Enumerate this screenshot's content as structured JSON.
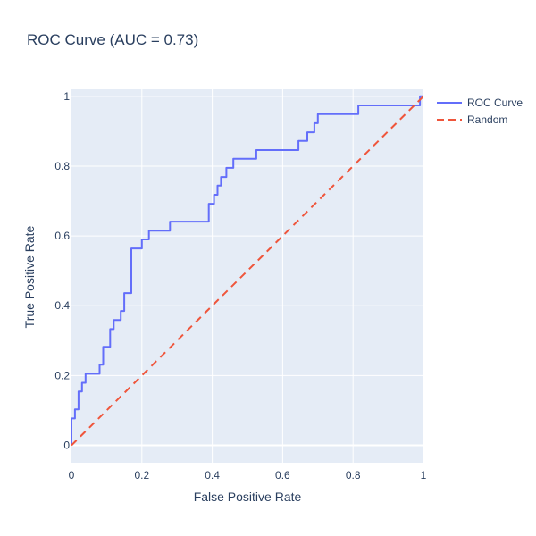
{
  "chart_data": {
    "type": "line",
    "title": "ROC Curve (AUC = 0.73)",
    "xlabel": "False Positive Rate",
    "ylabel": "True Positive Rate",
    "xlim": [
      0,
      1
    ],
    "ylim": [
      -0.05,
      1.02
    ],
    "x_ticks": [
      0,
      0.2,
      0.4,
      0.6,
      0.8,
      1
    ],
    "y_ticks": [
      0,
      0.2,
      0.4,
      0.6,
      0.8,
      1
    ],
    "x_tick_labels": [
      "0",
      "0.2",
      "0.4",
      "0.6",
      "0.8",
      "1"
    ],
    "y_tick_labels": [
      "0",
      "0.2",
      "0.4",
      "0.6",
      "0.8",
      "1"
    ],
    "grid": true,
    "legend_position": "top-right, outside plot",
    "series": [
      {
        "name": "ROC Curve",
        "color": "#636efa",
        "line": "solid",
        "x": [
          0,
          0,
          0.01,
          0.01,
          0.02,
          0.02,
          0.03,
          0.03,
          0.04,
          0.04,
          0.08,
          0.08,
          0.09,
          0.09,
          0.11,
          0.11,
          0.12,
          0.12,
          0.14,
          0.14,
          0.15,
          0.15,
          0.17,
          0.17,
          0.2,
          0.2,
          0.22,
          0.22,
          0.28,
          0.28,
          0.39,
          0.39,
          0.405,
          0.405,
          0.415,
          0.415,
          0.425,
          0.425,
          0.44,
          0.44,
          0.46,
          0.46,
          0.525,
          0.525,
          0.645,
          0.645,
          0.67,
          0.67,
          0.69,
          0.69,
          0.7,
          0.7,
          0.815,
          0.815,
          0.99,
          0.99,
          1
        ],
        "y": [
          0,
          0.077,
          0.077,
          0.103,
          0.103,
          0.154,
          0.154,
          0.179,
          0.179,
          0.205,
          0.205,
          0.231,
          0.231,
          0.282,
          0.282,
          0.333,
          0.333,
          0.359,
          0.359,
          0.385,
          0.385,
          0.436,
          0.436,
          0.564,
          0.564,
          0.59,
          0.59,
          0.615,
          0.615,
          0.641,
          0.641,
          0.692,
          0.692,
          0.718,
          0.718,
          0.744,
          0.744,
          0.769,
          0.769,
          0.795,
          0.795,
          0.821,
          0.821,
          0.846,
          0.846,
          0.872,
          0.872,
          0.897,
          0.897,
          0.923,
          0.923,
          0.949,
          0.949,
          0.974,
          0.974,
          1,
          1
        ]
      },
      {
        "name": "Random",
        "color": "#ef553b",
        "line": "dash",
        "x": [
          0,
          1
        ],
        "y": [
          0,
          1
        ]
      }
    ]
  }
}
